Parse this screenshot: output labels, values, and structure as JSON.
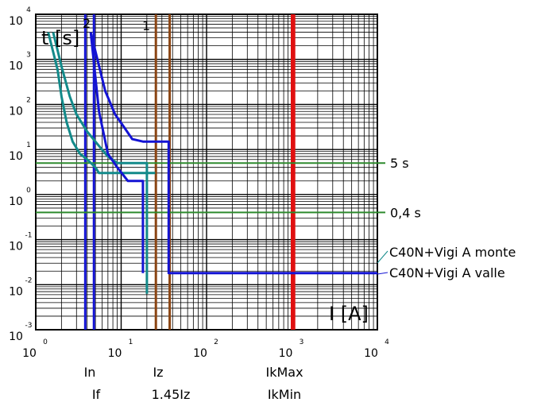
{
  "chart_data": {
    "type": "line",
    "x_scale": "log",
    "y_scale": "log",
    "xlim": [
      1,
      10000
    ],
    "ylim": [
      0.001,
      10000
    ],
    "grid": true,
    "xlabel": "I [A]",
    "ylabel": "t [s]",
    "x_ticks": [
      {
        "base": "10",
        "exp": "0",
        "value": 1
      },
      {
        "base": "10",
        "exp": "1",
        "value": 10
      },
      {
        "base": "10",
        "exp": "2",
        "value": 100
      },
      {
        "base": "10",
        "exp": "3",
        "value": 1000
      },
      {
        "base": "10",
        "exp": "4",
        "value": 10000
      }
    ],
    "y_ticks": [
      {
        "base": "10",
        "exp": "-3",
        "value": 0.001
      },
      {
        "base": "10",
        "exp": "-2",
        "value": 0.01
      },
      {
        "base": "10",
        "exp": "-1",
        "value": 0.1
      },
      {
        "base": "10",
        "exp": "0",
        "value": 1
      },
      {
        "base": "10",
        "exp": "1",
        "value": 10
      },
      {
        "base": "10",
        "exp": "2",
        "value": 100
      },
      {
        "base": "10",
        "exp": "3",
        "value": 1000
      },
      {
        "base": "10",
        "exp": "4",
        "value": 10000
      }
    ],
    "series": [
      {
        "name": "C40N+Vigi A monte",
        "id": "1",
        "color": "#138a8a",
        "points": [
          [
            1.6,
            4000
          ],
          [
            2.0,
            700
          ],
          [
            2.5,
            150
          ],
          [
            3.0,
            60
          ],
          [
            4.0,
            25
          ],
          [
            5.5,
            12
          ],
          [
            7.0,
            7
          ],
          [
            9.0,
            5
          ],
          [
            10,
            5
          ],
          [
            20,
            5
          ],
          [
            20,
            0.0063
          ]
        ]
      },
      {
        "name": "C40N+Vigi A monte",
        "id": "1",
        "color": "#138a8a",
        "points": [
          [
            1.4,
            4000
          ],
          [
            1.8,
            600
          ],
          [
            2.0,
            150
          ],
          [
            2.3,
            40
          ],
          [
            2.7,
            15
          ],
          [
            3.3,
            8
          ],
          [
            4.0,
            6
          ],
          [
            5.0,
            4
          ],
          [
            5.5,
            3
          ],
          [
            6.0,
            3
          ],
          [
            8.0,
            3
          ],
          [
            10,
            3
          ],
          [
            14,
            3
          ],
          [
            18,
            3
          ],
          [
            25,
            3
          ]
        ]
      },
      {
        "name": "C40N+Vigi A valle",
        "id": "2",
        "color": "#1414d4",
        "points": [
          [
            4.4,
            4000
          ],
          [
            6.5,
            200
          ],
          [
            8.5,
            60
          ],
          [
            11,
            30
          ],
          [
            13.5,
            17
          ],
          [
            18,
            15
          ],
          [
            36,
            15
          ],
          [
            36,
            0.018
          ],
          [
            10000,
            0.018
          ]
        ]
      },
      {
        "name": "C40N+Vigi A valle",
        "id": "2",
        "color": "#1414d4",
        "points": [
          [
            4.4,
            4000
          ],
          [
            5.0,
            400
          ],
          [
            5.5,
            70
          ],
          [
            7.0,
            8
          ],
          [
            9.0,
            4
          ],
          [
            12,
            2
          ],
          [
            18,
            2
          ],
          [
            18,
            0.018
          ]
        ]
      }
    ],
    "reference_lines": [
      {
        "orientation": "horizontal",
        "value": 5,
        "label": "5 s",
        "color": "#2e8b2e"
      },
      {
        "orientation": "horizontal",
        "value": 0.4,
        "label": "0,4 s",
        "color": "#2e8b2e"
      }
    ],
    "vertical_markers": [
      {
        "value": 3.8,
        "label": "In",
        "color": "#1414d4"
      },
      {
        "value": 4.8,
        "label": "If",
        "color": "#1414d4"
      },
      {
        "value": 25.5,
        "label": "Iz",
        "color": "#8b4513"
      },
      {
        "value": 37,
        "label": "1.45Iz",
        "color": "#8b4513"
      },
      {
        "value": 1000,
        "label": "IkMax",
        "color": "#e01010"
      },
      {
        "value": 1060,
        "label": "IkMin",
        "color": "#e01010"
      }
    ],
    "legend": [
      {
        "text": "C40N+Vigi A monte",
        "color": "#138a8a"
      },
      {
        "text": "C40N+Vigi A valle",
        "color": "#1414d4"
      }
    ],
    "curve_labels": [
      {
        "text": "1"
      },
      {
        "text": "2"
      }
    ]
  },
  "bottom_labels": {
    "row1": [
      "In",
      "Iz",
      "IkMax"
    ],
    "row2": [
      "If",
      "1.45Iz",
      "IkMin"
    ]
  }
}
